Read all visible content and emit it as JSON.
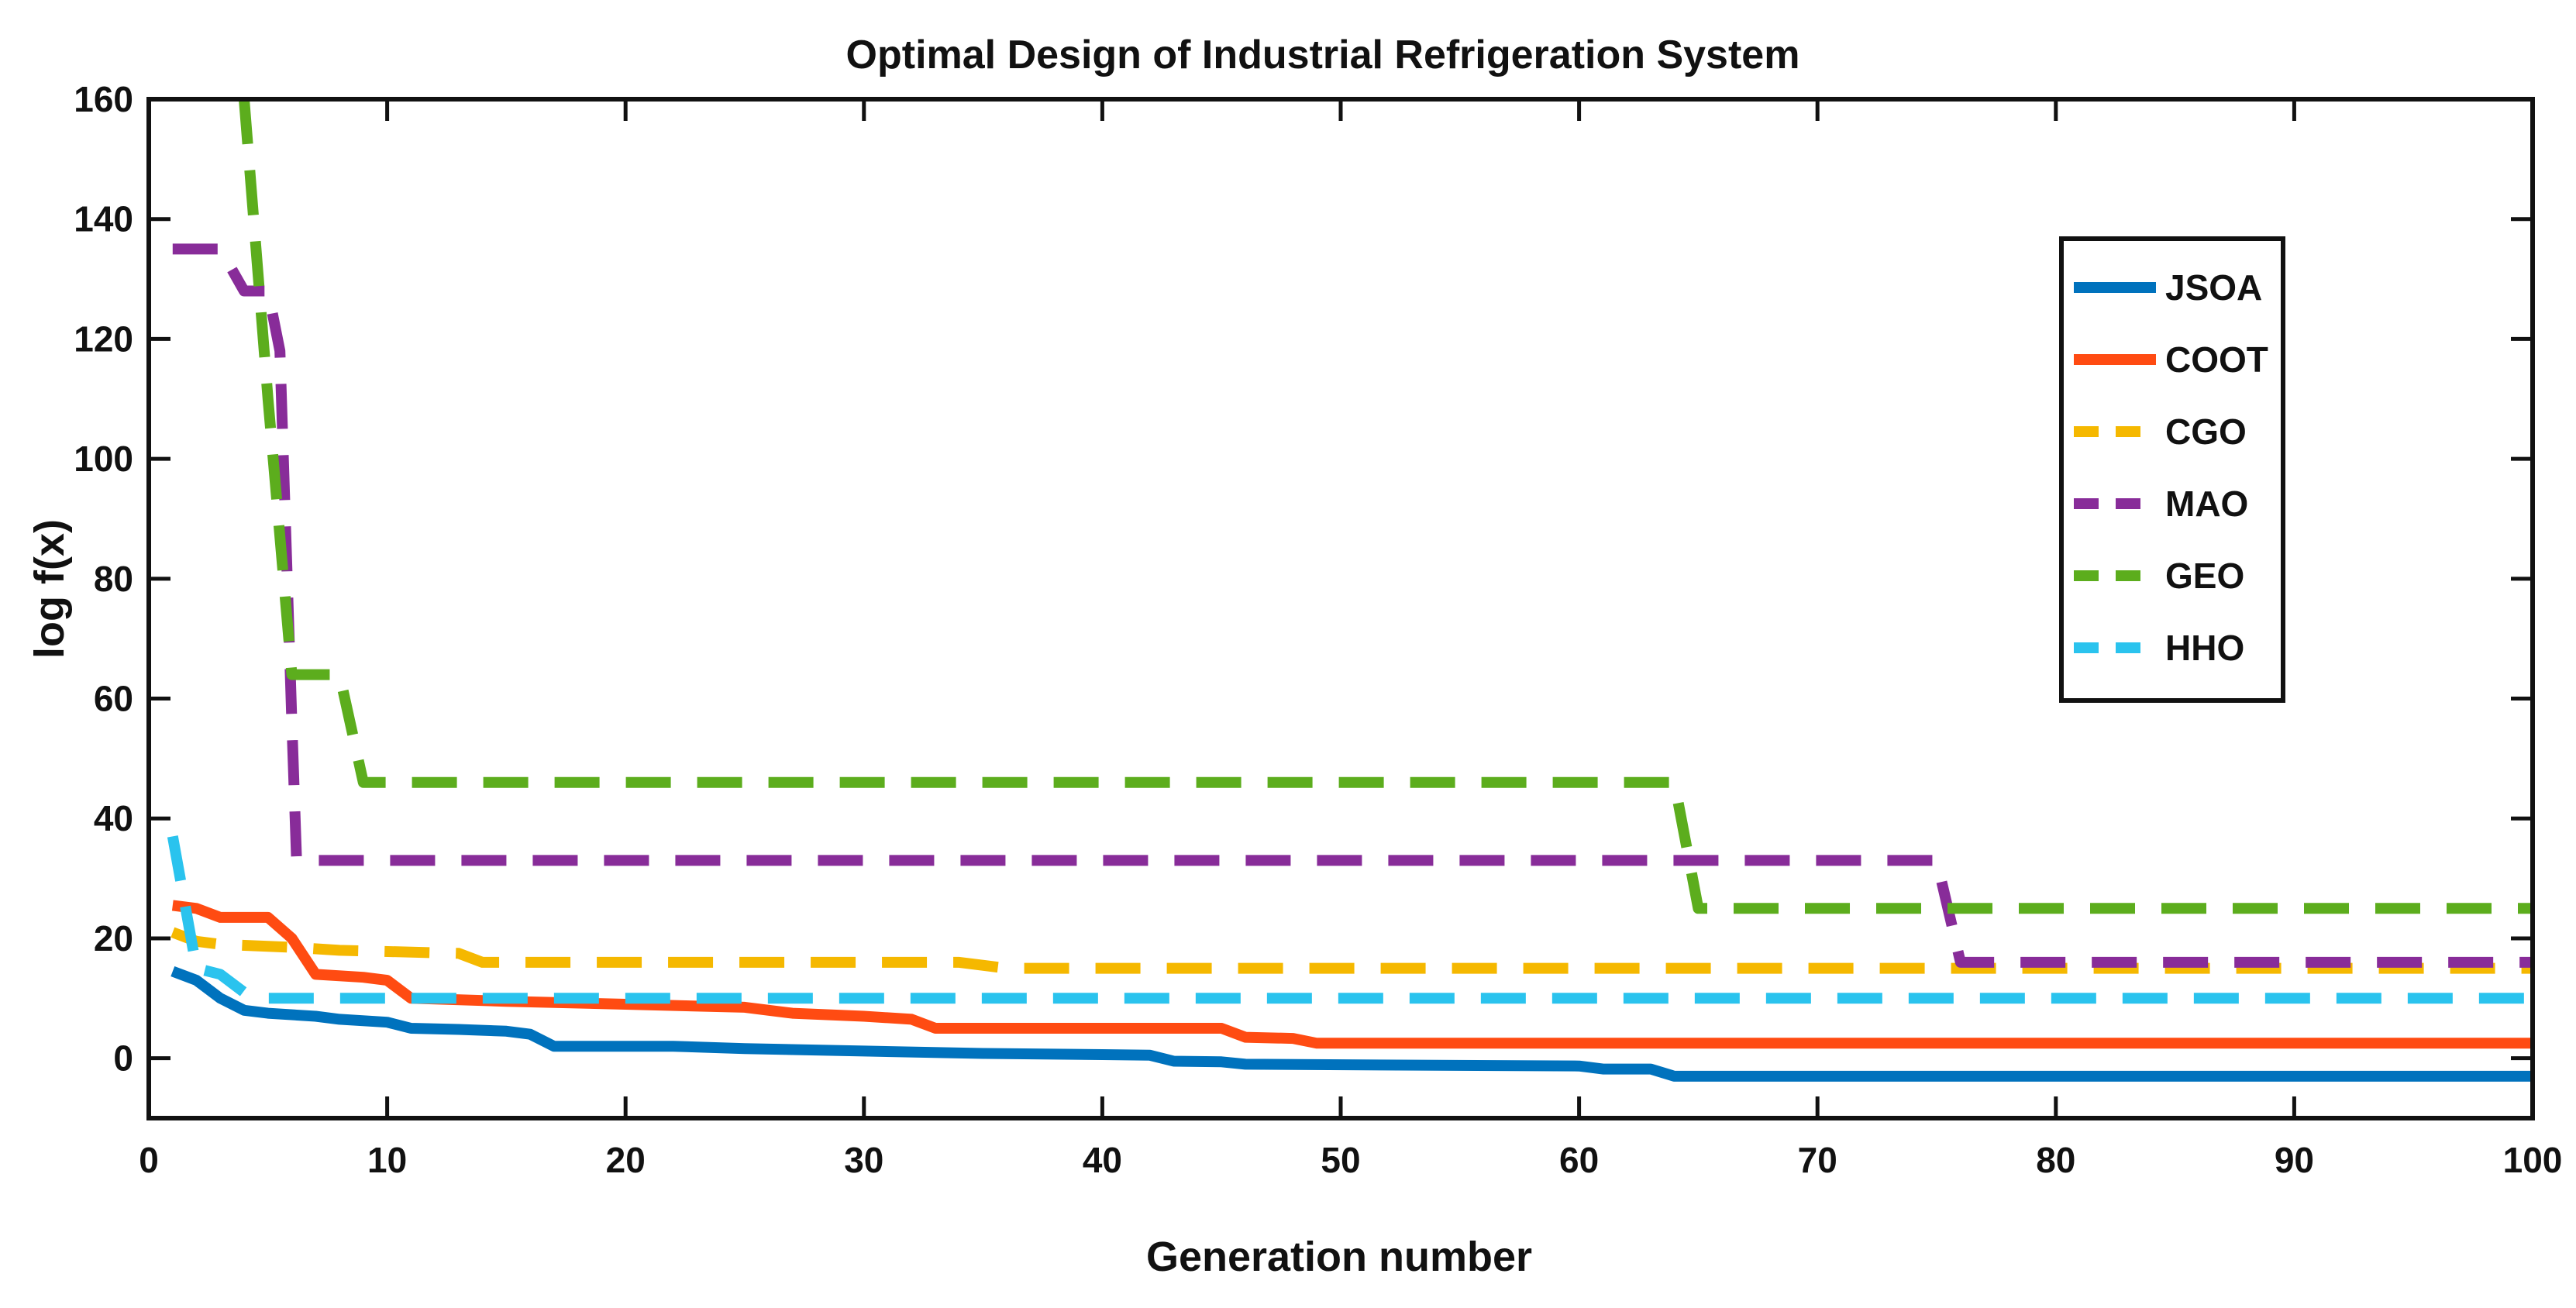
{
  "chart_data": {
    "type": "line",
    "title": "Optimal Design of Industrial Refrigeration System",
    "xlabel": "Generation number",
    "ylabel": "log f(x)",
    "xlim": [
      0,
      100
    ],
    "ylim": [
      -10,
      160
    ],
    "xticks": [
      0,
      10,
      20,
      30,
      40,
      50,
      60,
      70,
      80,
      90,
      100
    ],
    "yticks": [
      0,
      20,
      40,
      60,
      80,
      100,
      120,
      140,
      160
    ],
    "legend_position": "top-right",
    "series": [
      {
        "name": "JSOA",
        "color": "#0072BD",
        "dash": "solid",
        "points": [
          [
            1,
            14.5
          ],
          [
            2,
            13
          ],
          [
            3,
            10
          ],
          [
            4,
            8
          ],
          [
            5,
            7.5
          ],
          [
            7,
            7
          ],
          [
            8,
            6.5
          ],
          [
            10,
            6
          ],
          [
            11,
            5
          ],
          [
            13,
            4.8
          ],
          [
            15,
            4.5
          ],
          [
            16,
            4
          ],
          [
            17,
            2
          ],
          [
            22,
            2
          ],
          [
            25,
            1.6
          ],
          [
            30,
            1.2
          ],
          [
            35,
            0.8
          ],
          [
            40,
            0.6
          ],
          [
            42,
            0.5
          ],
          [
            43,
            -0.5
          ],
          [
            45,
            -0.6
          ],
          [
            46,
            -1
          ],
          [
            60,
            -1.3
          ],
          [
            61,
            -1.8
          ],
          [
            63,
            -1.8
          ],
          [
            64,
            -3
          ],
          [
            100,
            -3
          ]
        ]
      },
      {
        "name": "COOT",
        "color": "#FF4B12",
        "dash": "solid",
        "points": [
          [
            1,
            25.5
          ],
          [
            2,
            25
          ],
          [
            3,
            23.5
          ],
          [
            5,
            23.5
          ],
          [
            6,
            20
          ],
          [
            7,
            14
          ],
          [
            9,
            13.5
          ],
          [
            10,
            13
          ],
          [
            11,
            10
          ],
          [
            15,
            9.5
          ],
          [
            20,
            9
          ],
          [
            25,
            8.5
          ],
          [
            27,
            7.5
          ],
          [
            30,
            7
          ],
          [
            32,
            6.5
          ],
          [
            33,
            5
          ],
          [
            45,
            5
          ],
          [
            46,
            3.5
          ],
          [
            48,
            3.3
          ],
          [
            49,
            2.5
          ],
          [
            100,
            2.5
          ]
        ]
      },
      {
        "name": "CGO",
        "color": "#F5B800",
        "dash": "dash",
        "points": [
          [
            1,
            21
          ],
          [
            2,
            19.5
          ],
          [
            3,
            19
          ],
          [
            6,
            18.5
          ],
          [
            8,
            18
          ],
          [
            13,
            17.5
          ],
          [
            14,
            16
          ],
          [
            34,
            16
          ],
          [
            36,
            15
          ],
          [
            100,
            15
          ]
        ]
      },
      {
        "name": "MAO",
        "color": "#882C99",
        "dash": "dash",
        "points": [
          [
            1,
            135
          ],
          [
            3,
            135
          ],
          [
            4,
            128
          ],
          [
            5,
            128
          ],
          [
            5.5,
            118
          ],
          [
            6,
            56
          ],
          [
            6.2,
            33
          ],
          [
            75,
            33
          ],
          [
            76,
            16
          ],
          [
            100,
            16
          ]
        ]
      },
      {
        "name": "GEO",
        "color": "#5CAD1D",
        "dash": "dash",
        "points": [
          [
            4,
            160
          ],
          [
            5,
            110
          ],
          [
            6,
            64
          ],
          [
            8,
            64
          ],
          [
            9,
            46
          ],
          [
            64,
            46
          ],
          [
            65,
            25
          ],
          [
            100,
            25
          ]
        ]
      },
      {
        "name": "HHO",
        "color": "#2AC3EE",
        "dash": "dash",
        "points": [
          [
            1,
            37
          ],
          [
            2,
            15
          ],
          [
            3,
            14
          ],
          [
            4,
            11
          ],
          [
            5,
            10
          ],
          [
            100,
            10
          ]
        ]
      }
    ]
  }
}
